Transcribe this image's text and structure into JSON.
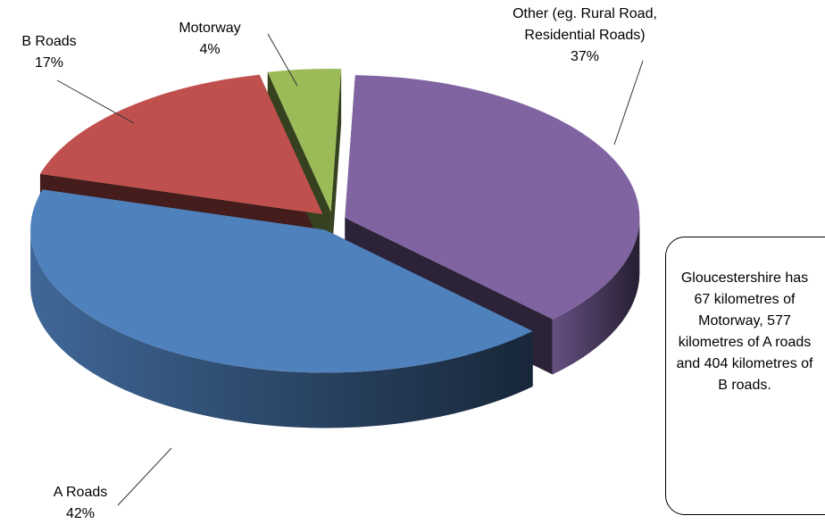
{
  "chart_data": {
    "type": "pie3d",
    "categories": [
      "Other (eg. Rural Road, Residential Roads)",
      "A Roads",
      "B Roads",
      "Motorway"
    ],
    "values": [
      37,
      42,
      17,
      4
    ],
    "value_labels": [
      "37%",
      "42%",
      "17%",
      "4%"
    ],
    "colors": [
      "#8064a2",
      "#4f81bd",
      "#c0504d",
      "#9bbb59"
    ],
    "annotation": "Gloucestershire has 67 kilometres of Motorway, 577 kilometres of A roads and 404 kilometres of B roads."
  }
}
